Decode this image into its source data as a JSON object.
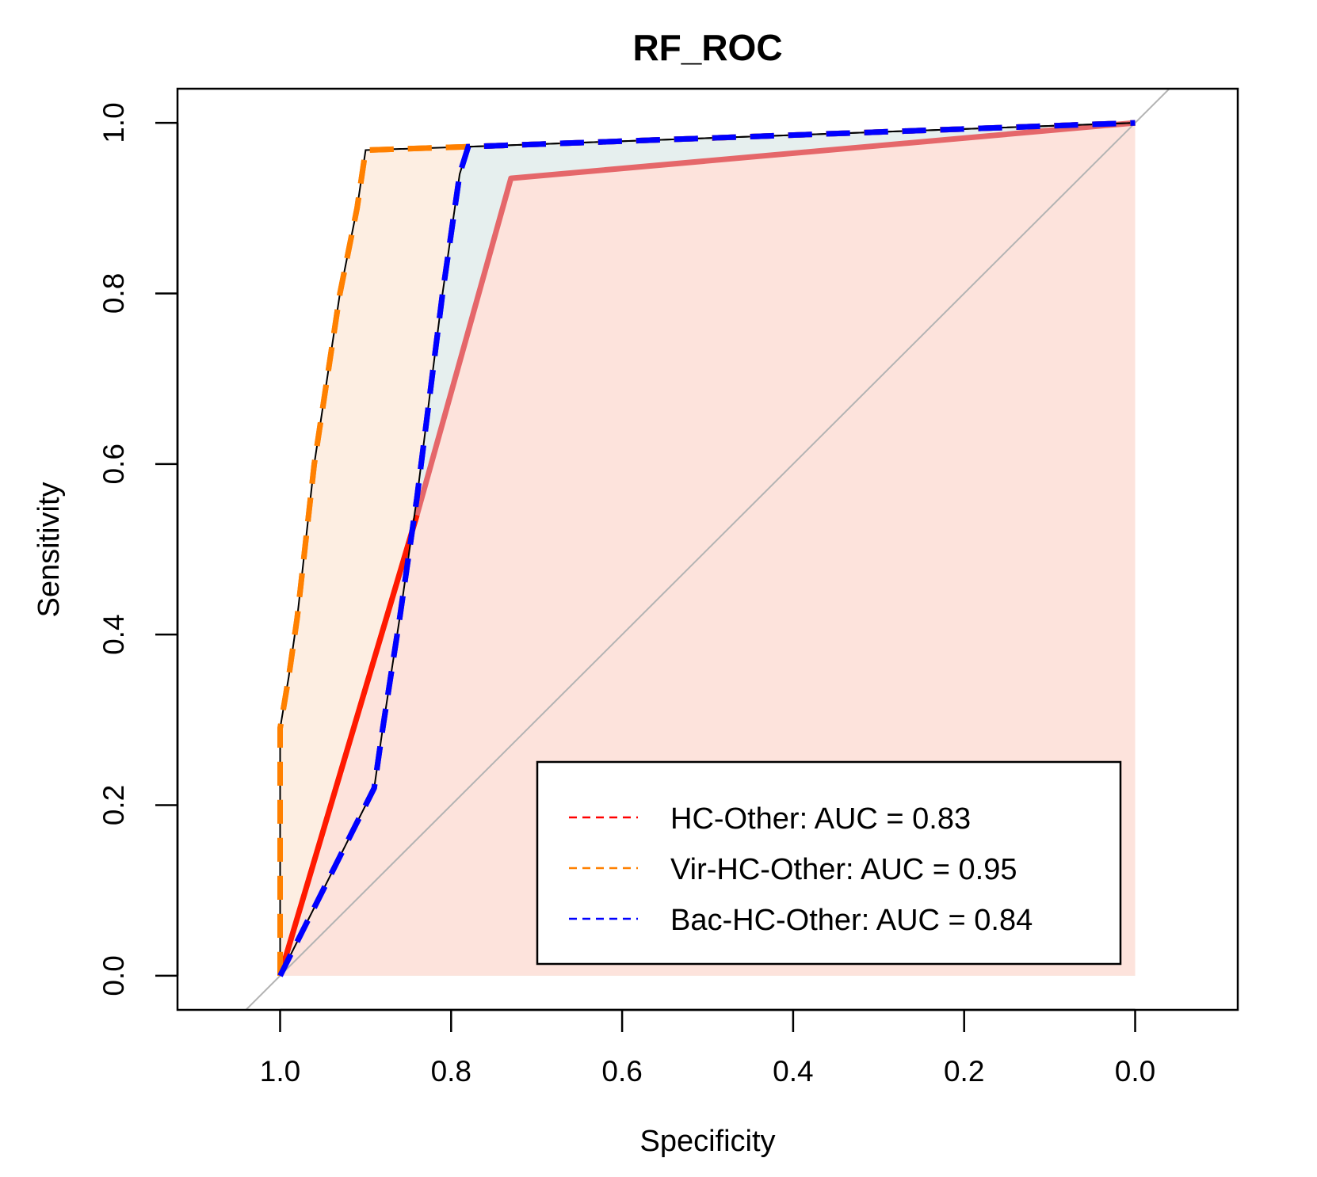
{
  "chart_data": {
    "type": "line",
    "title": "RF_ROC",
    "xlabel": "Specificity",
    "ylabel": "Sensitivity",
    "xlim": [
      1.12,
      -0.12
    ],
    "ylim": [
      -0.04,
      1.04
    ],
    "x_reversed": true,
    "x_ticks": [
      "1.0",
      "0.8",
      "0.6",
      "0.4",
      "0.2",
      "0.0"
    ],
    "y_ticks": [
      "0.0",
      "0.2",
      "0.4",
      "0.6",
      "0.8",
      "1.0"
    ],
    "legend_position": "bottom-right",
    "diagonal_reference": true,
    "series": [
      {
        "name": "HC-Other: AUC = 0.83",
        "color": "#ff0000",
        "fill": "#fde3dc",
        "points": [
          [
            1.0,
            0.0
          ],
          [
            0.84,
            0.54
          ],
          [
            0.73,
            0.935
          ],
          [
            0.0,
            1.0
          ]
        ]
      },
      {
        "name": "Vir-HC-Other: AUC = 0.95",
        "color": "#ff8000",
        "fill": "#fdeee2",
        "points": [
          [
            1.0,
            0.0
          ],
          [
            1.0,
            0.29
          ],
          [
            0.99,
            0.35
          ],
          [
            0.98,
            0.42
          ],
          [
            0.96,
            0.6
          ],
          [
            0.93,
            0.8
          ],
          [
            0.91,
            0.9
          ],
          [
            0.9,
            0.968
          ],
          [
            0.78,
            0.972
          ],
          [
            0.0,
            1.0
          ]
        ]
      },
      {
        "name": "Bac-HC-Other: AUC = 0.84",
        "color": "#0000ff",
        "fill": "#e6efee",
        "points": [
          [
            1.0,
            0.0
          ],
          [
            0.89,
            0.22
          ],
          [
            0.88,
            0.29
          ],
          [
            0.86,
            0.42
          ],
          [
            0.84,
            0.56
          ],
          [
            0.81,
            0.8
          ],
          [
            0.79,
            0.94
          ],
          [
            0.78,
            0.972
          ],
          [
            0.0,
            1.0
          ]
        ]
      }
    ]
  }
}
